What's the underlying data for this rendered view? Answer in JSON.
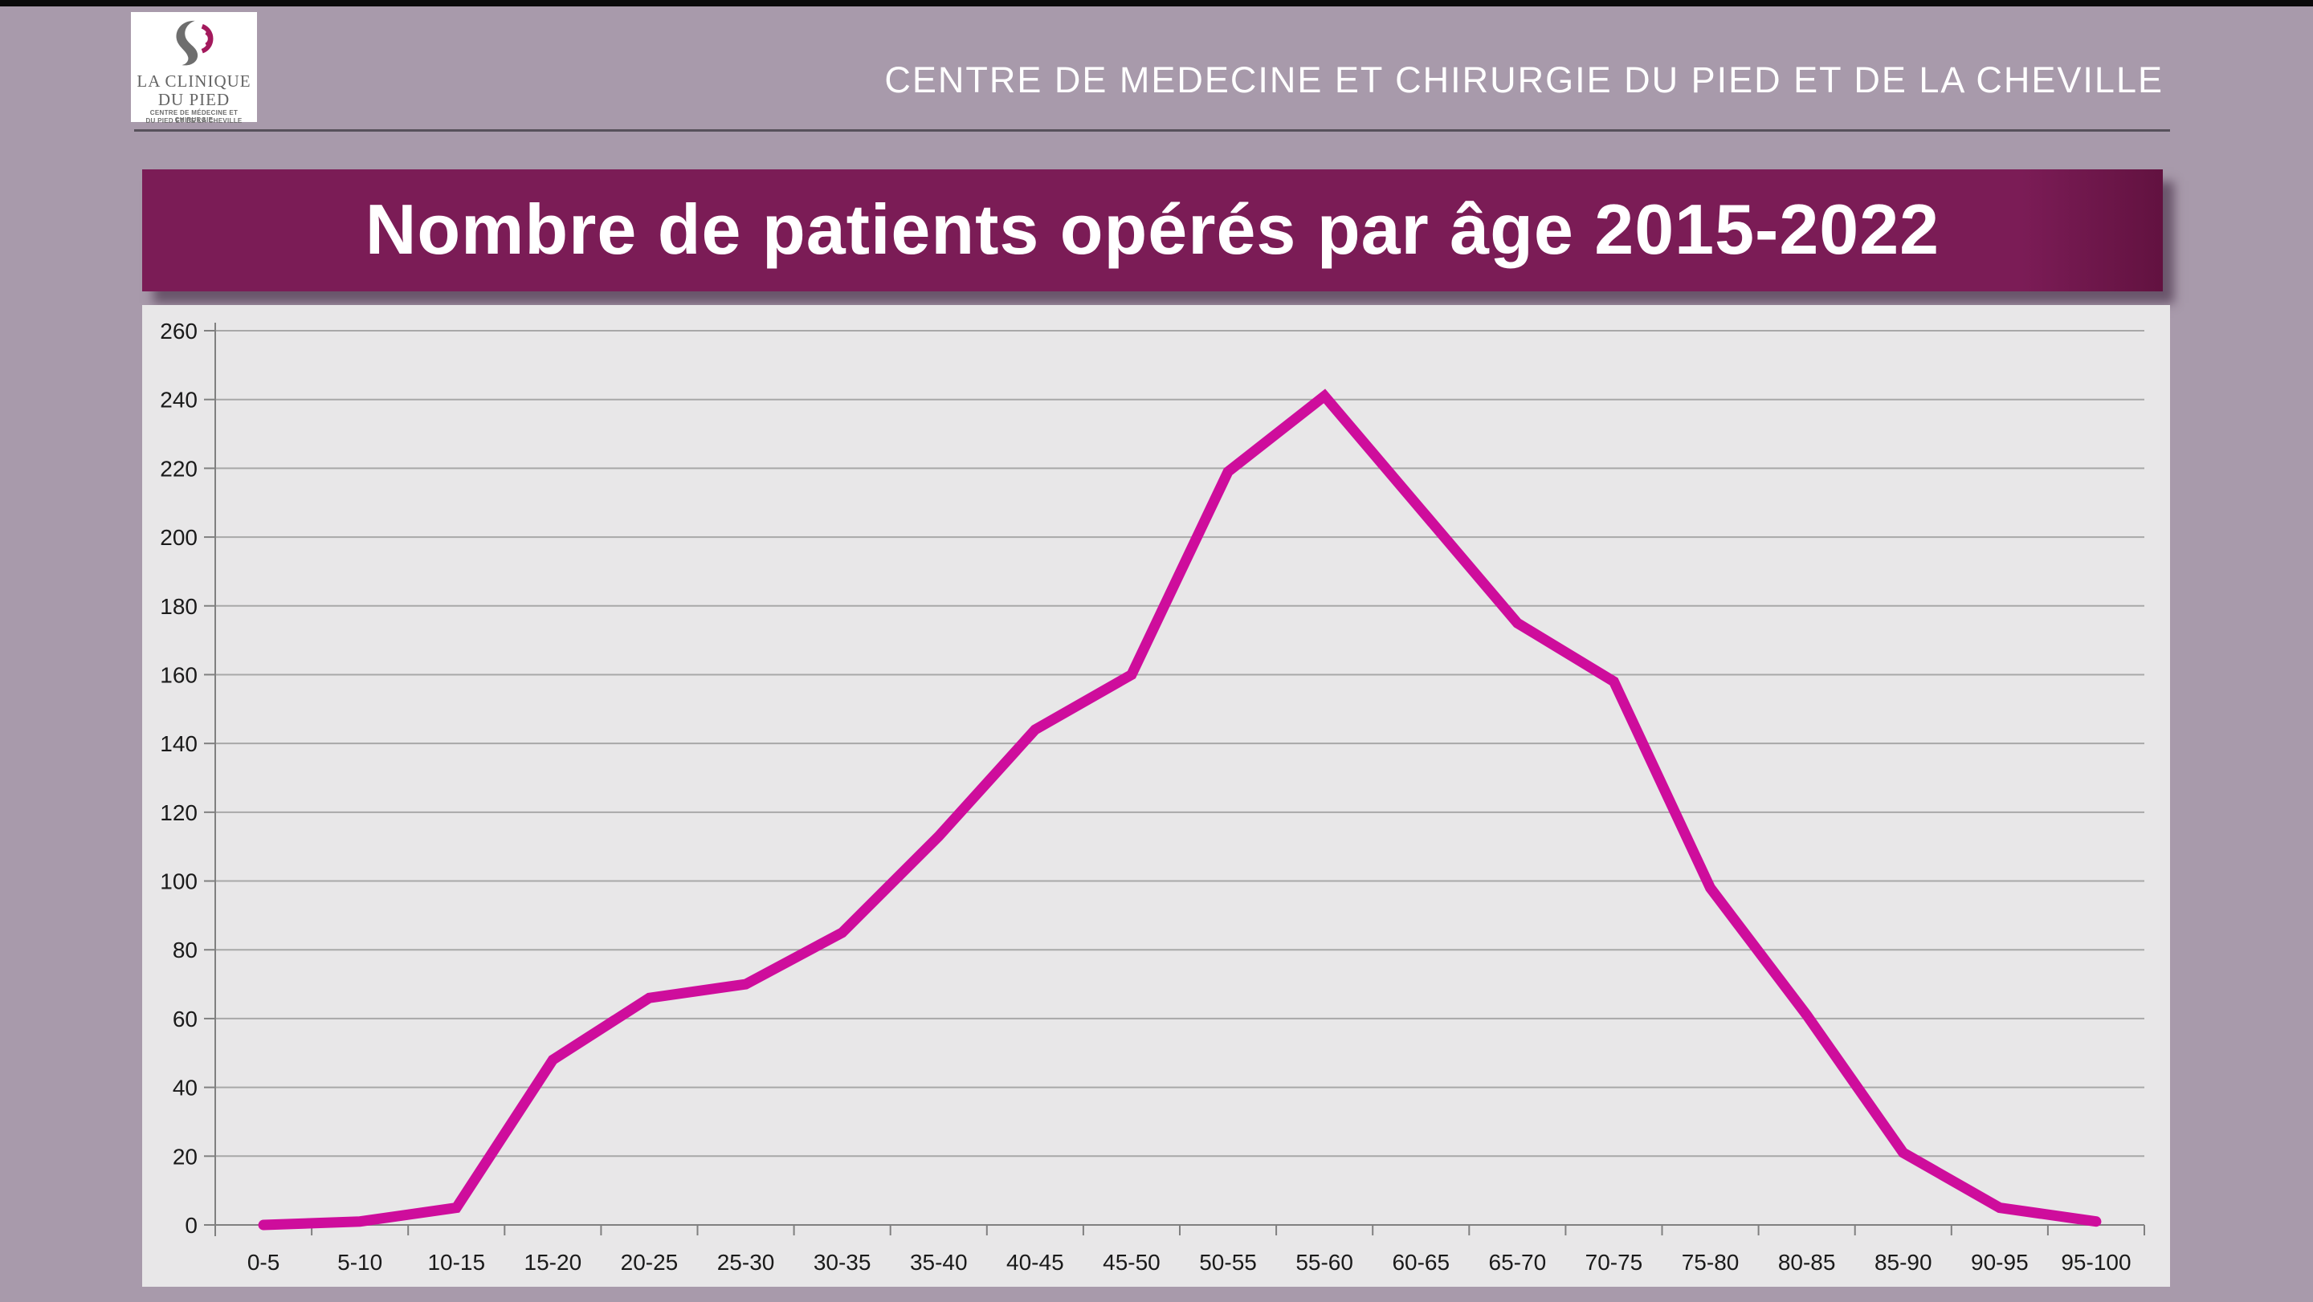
{
  "page": {
    "top_bar_color": "#0a0a0a",
    "background_color": "#a89aab"
  },
  "logo": {
    "line1": "LA CLINIQUE",
    "line2": "DU PIED",
    "subline1": "CENTRE DE MÉDECINE ET CHIRURGIE",
    "subline2": "DU PIED ET DE LA CHEVILLE",
    "icon_gray_color": "#6e6e6e",
    "icon_magenta_color": "#a3195c"
  },
  "header": {
    "title": "CENTRE DE MEDECINE ET CHIRURGIE DU PIED ET DE LA CHEVILLE"
  },
  "banner": {
    "title": "Nombre de patients opérés par âge 2015-2022",
    "background_color": "#7b1c56",
    "text_color": "#ffffff"
  },
  "chart_data": {
    "type": "line",
    "title": "Nombre de patients opérés par âge 2015-2022",
    "categories": [
      "0-5",
      "5-10",
      "10-15",
      "15-20",
      "20-25",
      "25-30",
      "30-35",
      "35-40",
      "40-45",
      "45-50",
      "50-55",
      "55-60",
      "60-65",
      "65-70",
      "70-75",
      "75-80",
      "80-85",
      "85-90",
      "90-95",
      "95-100"
    ],
    "values": [
      0,
      1,
      5,
      48,
      66,
      70,
      85,
      113,
      144,
      160,
      219,
      241,
      208,
      175,
      158,
      98,
      61,
      21,
      5,
      1
    ],
    "ylim": [
      0,
      260
    ],
    "ytick_step": 20,
    "grid": true,
    "legend": false,
    "line_color": "#ce0d9c",
    "plot_background": "#e8e7e8",
    "gridline_color": "#a8a8a8",
    "axis_color": "#808080",
    "label_color": "#1a1a1a"
  }
}
